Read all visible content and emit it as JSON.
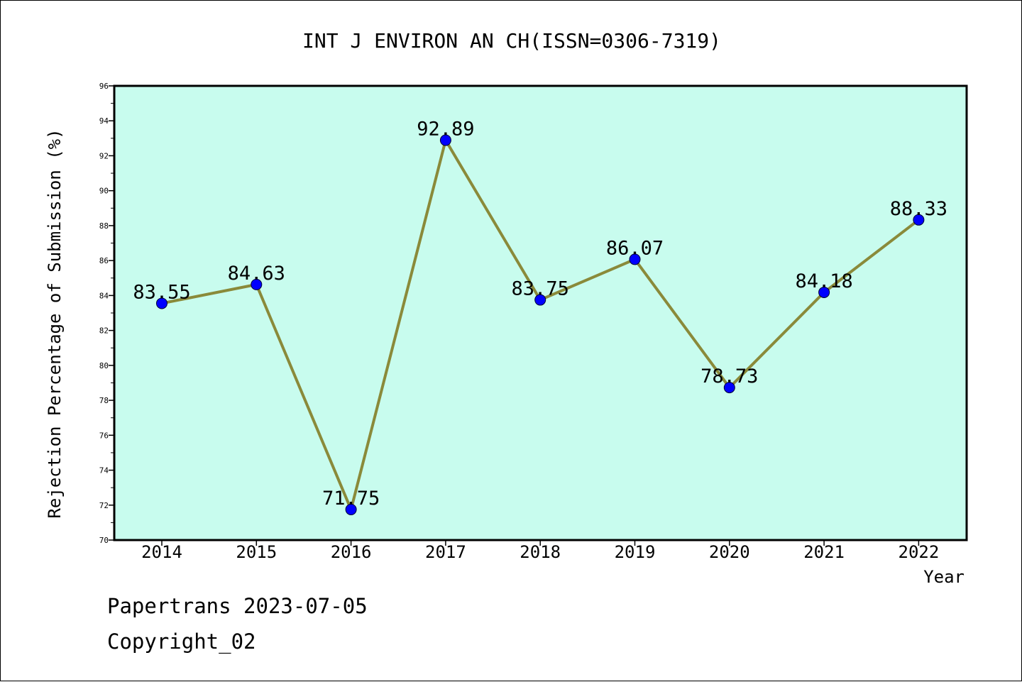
{
  "chart_data": {
    "type": "line",
    "title": "INT J ENVIRON AN CH(ISSN=0306-7319)",
    "xlabel": "Year",
    "ylabel": "Rejection Percentage of Submission (%)",
    "categories": [
      "2014",
      "2015",
      "2016",
      "2017",
      "2018",
      "2019",
      "2020",
      "2021",
      "2022"
    ],
    "series": [
      {
        "values": [
          83.55,
          84.63,
          71.75,
          92.89,
          83.75,
          86.07,
          78.73,
          84.18,
          88.33
        ]
      }
    ],
    "data_labels": [
      "83.55",
      "84.63",
      "71.75",
      "92.89",
      "83.75",
      "86.07",
      "78.73",
      "84.18",
      "88.33"
    ],
    "ylim": [
      70,
      96
    ],
    "yticks": [
      "70",
      "72",
      "74",
      "76",
      "78",
      "80",
      "82",
      "84",
      "86",
      "88",
      "90",
      "92",
      "94",
      "96"
    ],
    "grid": false,
    "legend": "none",
    "colors": {
      "plot_background": "#c8fcee",
      "line": "#8a8a3a",
      "marker": "#0000ff"
    }
  },
  "footer": {
    "line1": "Papertrans 2023-07-05",
    "line2": "Copyright_02"
  }
}
